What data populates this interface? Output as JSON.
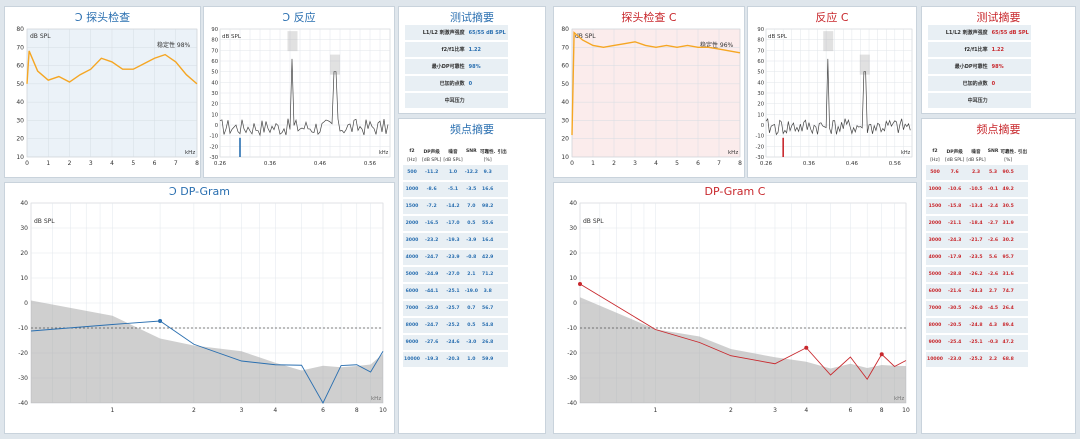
{
  "left": {
    "probe": {
      "title": "探头检查",
      "unit": "dB SPL",
      "stability": "稳定性 98%",
      "xlabel": "kHz",
      "yticks": [
        "80",
        "70",
        "60",
        "50",
        "40",
        "30",
        "20",
        "10"
      ],
      "xticks": [
        "0",
        "1",
        "2",
        "3",
        "4",
        "5",
        "6",
        "7",
        "8"
      ]
    },
    "response": {
      "title": "反应",
      "unit": "dB SPL",
      "xlabel": "kHz",
      "yticks": [
        "90",
        "80",
        "70",
        "60",
        "50",
        "40",
        "30",
        "20",
        "10",
        "0",
        "-10",
        "-20",
        "-30"
      ],
      "xticks": [
        "0.26",
        "0.36",
        "0.46",
        "0.56"
      ]
    },
    "dpgram": {
      "title": "DP-Gram",
      "unit": "dB SPL",
      "xlabel": "kHz",
      "yticks": [
        "40",
        "30",
        "20",
        "10",
        "0",
        "-10",
        "-20",
        "-30",
        "-40"
      ],
      "xticks": [
        "1",
        "2",
        "3",
        "4",
        "6",
        "8",
        "10"
      ]
    },
    "test_summary": {
      "title": "测试摘要",
      "rows": [
        {
          "k": "L1/L2 刺激声强度",
          "v": "65/55 dB SPL"
        },
        {
          "k": "f2/f1比率",
          "v": "1.22"
        },
        {
          "k": "最小DP可靠性",
          "v": "98%"
        },
        {
          "k": "已加的点数",
          "v": "0"
        },
        {
          "k": "中耳压力",
          "v": ""
        }
      ]
    },
    "freq_summary": {
      "title": "频点摘要",
      "headers": [
        "f2",
        "DP声级",
        "噪音",
        "SNR",
        "可靠性.",
        "引出"
      ],
      "subheaders": [
        "[Hz]",
        "[dB SPL]",
        "[dB SPL]",
        "",
        "[%]",
        ""
      ],
      "rows": [
        [
          "500",
          "-11.2",
          "1.0",
          "-12.2",
          "9.3",
          ""
        ],
        [
          "1000",
          "-8.6",
          "-5.1",
          "-3.5",
          "16.6",
          ""
        ],
        [
          "1500",
          "-7.2",
          "-14.2",
          "7.0",
          "98.2",
          ""
        ],
        [
          "2000",
          "-16.5",
          "-17.0",
          "0.5",
          "55.6",
          ""
        ],
        [
          "3000",
          "-23.2",
          "-19.3",
          "-3.9",
          "16.4",
          ""
        ],
        [
          "4000",
          "-24.7",
          "-23.9",
          "-0.8",
          "42.9",
          ""
        ],
        [
          "5000",
          "-24.9",
          "-27.0",
          "2.1",
          "71.2",
          ""
        ],
        [
          "6000",
          "-44.1",
          "-25.1",
          "-19.0",
          "3.8",
          ""
        ],
        [
          "7000",
          "-25.0",
          "-25.7",
          "0.7",
          "56.7",
          ""
        ],
        [
          "8000",
          "-24.7",
          "-25.2",
          "0.5",
          "54.8",
          ""
        ],
        [
          "9000",
          "-27.6",
          "-24.6",
          "-3.0",
          "26.8",
          ""
        ],
        [
          "10000",
          "-19.3",
          "-20.3",
          "1.0",
          "59.9",
          ""
        ]
      ]
    }
  },
  "right": {
    "probe": {
      "title": "探头检查",
      "unit": "dB SPL",
      "stability": "稳定性 96%",
      "xlabel": "kHz",
      "yticks": [
        "80",
        "70",
        "60",
        "50",
        "40",
        "30",
        "20",
        "10"
      ],
      "xticks": [
        "0",
        "1",
        "2",
        "3",
        "4",
        "5",
        "6",
        "7",
        "8"
      ]
    },
    "response": {
      "title": "反应",
      "unit": "dB SPL",
      "xlabel": "kHz",
      "yticks": [
        "90",
        "80",
        "70",
        "60",
        "50",
        "40",
        "30",
        "20",
        "10",
        "0",
        "-10",
        "-20",
        "-30"
      ],
      "xticks": [
        "0.26",
        "0.36",
        "0.46",
        "0.56"
      ]
    },
    "dpgram": {
      "title": "DP-Gram",
      "unit": "dB SPL",
      "xlabel": "kHz",
      "yticks": [
        "40",
        "30",
        "20",
        "10",
        "0",
        "-10",
        "-20",
        "-30",
        "-40"
      ],
      "xticks": [
        "1",
        "2",
        "3",
        "4",
        "6",
        "8",
        "10"
      ]
    },
    "test_summary": {
      "title": "测试摘要",
      "rows": [
        {
          "k": "L1/L2 刺激声强度",
          "v": "65/55 dB SPL"
        },
        {
          "k": "f2/f1比率",
          "v": "1.22"
        },
        {
          "k": "最小DP可靠性",
          "v": "98%"
        },
        {
          "k": "已加的点数",
          "v": "0"
        },
        {
          "k": "中耳压力",
          "v": ""
        }
      ]
    },
    "freq_summary": {
      "title": "频点摘要",
      "headers": [
        "f2",
        "DP声级",
        "噪音",
        "SNR",
        "可靠性.",
        "引出"
      ],
      "subheaders": [
        "[Hz]",
        "[dB SPL]",
        "[dB SPL]",
        "",
        "[%]",
        ""
      ],
      "rows": [
        [
          "500",
          "7.6",
          "2.3",
          "5.3",
          "90.5",
          ""
        ],
        [
          "1000",
          "-10.6",
          "-10.5",
          "-0.1",
          "49.2",
          ""
        ],
        [
          "1500",
          "-15.8",
          "-13.4",
          "-2.4",
          "30.5",
          ""
        ],
        [
          "2000",
          "-21.1",
          "-18.4",
          "-2.7",
          "31.9",
          ""
        ],
        [
          "3000",
          "-24.3",
          "-21.7",
          "-2.6",
          "30.2",
          ""
        ],
        [
          "4000",
          "-17.9",
          "-23.5",
          "5.6",
          "95.7",
          ""
        ],
        [
          "5000",
          "-28.8",
          "-26.2",
          "-2.6",
          "31.6",
          ""
        ],
        [
          "6000",
          "-21.6",
          "-24.3",
          "2.7",
          "74.7",
          ""
        ],
        [
          "7000",
          "-30.5",
          "-26.0",
          "-4.5",
          "26.4",
          ""
        ],
        [
          "8000",
          "-20.5",
          "-24.8",
          "4.3",
          "89.4",
          ""
        ],
        [
          "9000",
          "-25.4",
          "-25.1",
          "-0.3",
          "47.2",
          ""
        ],
        [
          "10000",
          "-23.0",
          "-25.2",
          "2.2",
          "68.8",
          ""
        ]
      ]
    }
  },
  "colors": {
    "left_accent": "#2a6fb0",
    "right_accent": "#c8282d",
    "probe_curve": "#f5a623"
  },
  "chart_data": [
    {
      "type": "line",
      "ear": "left",
      "chart": "dpgram",
      "x_khz": [
        0.5,
        1,
        1.5,
        2,
        3,
        4,
        5,
        6,
        7,
        8,
        9,
        10
      ],
      "dp_level": [
        -11.2,
        -8.6,
        -7.2,
        -16.5,
        -23.2,
        -24.7,
        -24.9,
        -44.1,
        -25.0,
        -24.7,
        -27.6,
        -19.3
      ],
      "noise": [
        1.0,
        -5.1,
        -14.2,
        -17.0,
        -19.3,
        -23.9,
        -27.0,
        -25.1,
        -25.7,
        -25.2,
        -24.6,
        -20.3
      ],
      "ylim": [
        -40,
        40
      ],
      "xscale": "log",
      "grid": true
    },
    {
      "type": "line",
      "ear": "right",
      "chart": "dpgram",
      "x_khz": [
        0.5,
        1,
        1.5,
        2,
        3,
        4,
        5,
        6,
        7,
        8,
        9,
        10
      ],
      "dp_level": [
        7.6,
        -10.6,
        -15.8,
        -21.1,
        -24.3,
        -17.9,
        -28.8,
        -21.6,
        -30.5,
        -20.5,
        -25.4,
        -23.0
      ],
      "noise": [
        2.3,
        -10.5,
        -13.4,
        -18.4,
        -21.7,
        -23.5,
        -26.2,
        -24.3,
        -26.0,
        -24.8,
        -25.1,
        -25.2
      ],
      "ylim": [
        -40,
        40
      ],
      "xscale": "log",
      "grid": true
    },
    {
      "type": "line",
      "ear": "left",
      "chart": "probe",
      "x_khz": [
        0,
        0.1,
        0.5,
        1,
        1.5,
        2,
        2.5,
        3,
        3.5,
        4,
        4.5,
        5,
        5.5,
        6,
        6.5,
        7,
        7.5,
        8
      ],
      "y": [
        50,
        68,
        57,
        52,
        54,
        51,
        55,
        58,
        64,
        62,
        58,
        58,
        61,
        64,
        66,
        62,
        55,
        50
      ],
      "ylim": [
        10,
        80
      ],
      "grid": true
    },
    {
      "type": "line",
      "ear": "right",
      "chart": "probe",
      "x_khz": [
        0,
        0.1,
        0.5,
        1,
        1.5,
        2,
        2.5,
        3,
        3.5,
        4,
        4.5,
        5,
        5.5,
        6,
        6.5,
        7,
        7.5,
        8
      ],
      "y": [
        22,
        78,
        74,
        71,
        70,
        71,
        72,
        73,
        71,
        70,
        71,
        70,
        71,
        70,
        70,
        69,
        68,
        67
      ],
      "ylim": [
        10,
        80
      ],
      "grid": true
    },
    {
      "type": "line",
      "ear": "left",
      "chart": "response",
      "ylim": [
        -30,
        90
      ],
      "peaks_khz": [
        0.405,
        0.49
      ],
      "grid": true
    },
    {
      "type": "line",
      "ear": "right",
      "chart": "response",
      "ylim": [
        -30,
        90
      ],
      "peaks_khz": [
        0.405,
        0.49
      ],
      "grid": true
    }
  ]
}
